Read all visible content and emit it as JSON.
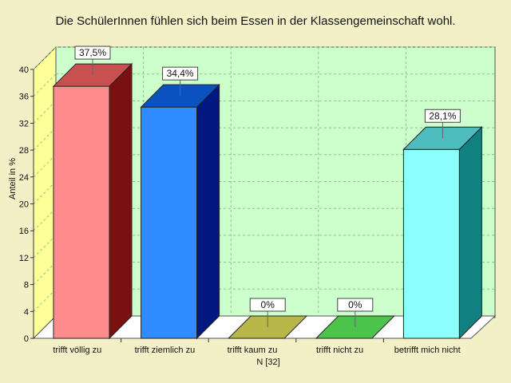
{
  "chart_data": {
    "type": "bar",
    "title": "Die SchülerInnen fühlen sich beim Essen in der Klassengemeinschaft wohl.",
    "ylabel": "Anteil in %",
    "xlabel": "",
    "note": "N [32]",
    "categories": [
      "trifft völlig zu",
      "trifft ziemlich zu",
      "trifft kaum zu",
      "trifft nicht zu",
      "betrifft mich nicht"
    ],
    "values": [
      37.5,
      34.4,
      0,
      0,
      28.1
    ],
    "value_labels": [
      "37,5%",
      "34,4%",
      "0%",
      "0%",
      "28,1%"
    ],
    "ylim": [
      0,
      40
    ],
    "yticks": [
      0,
      4,
      8,
      12,
      16,
      20,
      24,
      28,
      32,
      36,
      40
    ],
    "grid": true,
    "colors": {
      "background": "#f3f0c8",
      "plot": "#ccffcc",
      "gridline": "#7fcc7f",
      "back_wall_side": "#ffff99",
      "bar_front": [
        "#ff8c8c",
        "#2f8cff",
        "#b8b84a",
        "#4cc44c",
        "#8cffff"
      ],
      "bar_top": [
        "#c85050",
        "#0a52c0",
        "#b8b84a",
        "#4cc44c",
        "#4cbcbc"
      ],
      "bar_side": [
        "#7a1010",
        "#001880",
        "#8a8a2a",
        "#2a8a2a",
        "#108080"
      ]
    }
  }
}
